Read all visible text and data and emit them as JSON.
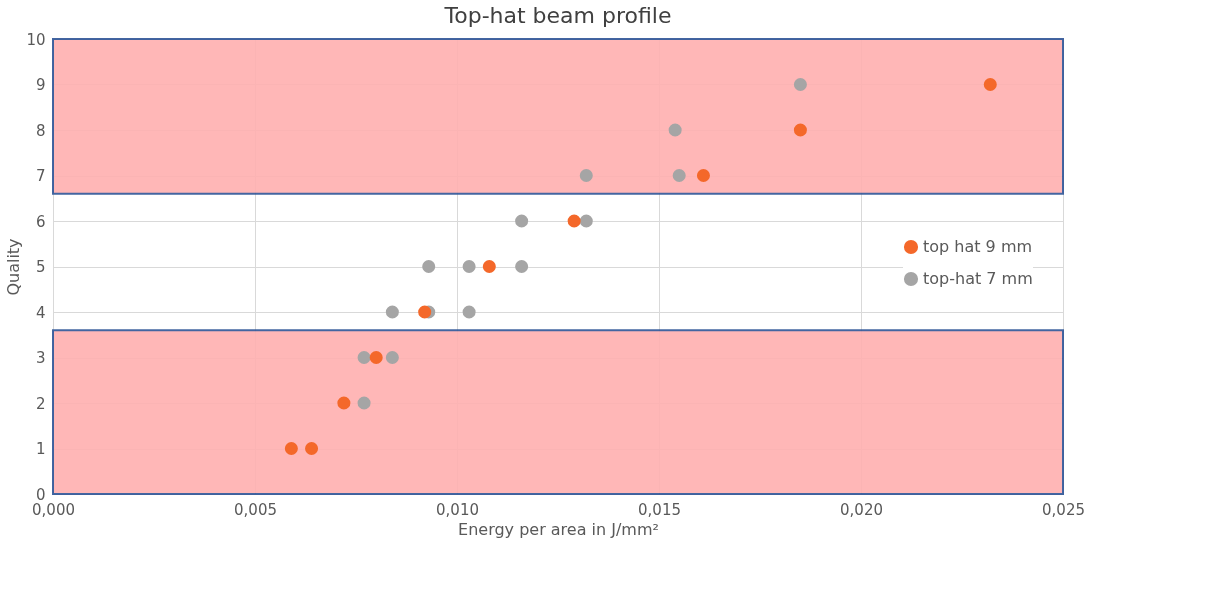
{
  "chart_data": {
    "type": "scatter",
    "title": "Top-hat beam profile",
    "xlabel": "Energy per area in J/mm²",
    "ylabel": "Quality",
    "xlim": [
      0,
      0.025
    ],
    "ylim": [
      0,
      10
    ],
    "xticks": [
      {
        "value": 0,
        "label": "0,000"
      },
      {
        "value": 0.005,
        "label": "0,005"
      },
      {
        "value": 0.01,
        "label": "0,010"
      },
      {
        "value": 0.015,
        "label": "0,015"
      },
      {
        "value": 0.02,
        "label": "0,020"
      },
      {
        "value": 0.025,
        "label": "0,025"
      }
    ],
    "yticks": [
      0,
      1,
      2,
      3,
      4,
      5,
      6,
      7,
      8,
      9,
      10
    ],
    "grid": true,
    "legend": "right",
    "marker": "circle",
    "bands": [
      {
        "axis": "y",
        "from": 6.6,
        "to": 10,
        "label": null,
        "color": "#ffb0b0"
      },
      {
        "axis": "y",
        "from": 0,
        "to": 3.6,
        "label": null,
        "color": "#ffb0b0"
      }
    ],
    "series": [
      {
        "name": "top hat 9 mm",
        "color": "#f4682a",
        "x": [
          0.0232,
          0.0185,
          0.0161,
          0.0129,
          0.0108,
          0.0092,
          0.008,
          0.0072,
          0.0059,
          0.0064
        ],
        "values": [
          9,
          8,
          7,
          6,
          5,
          4,
          3,
          2,
          1,
          1
        ]
      },
      {
        "name": "top-hat 7 mm",
        "color": "#a5a5a5",
        "x": [
          0.0185,
          0.0154,
          0.0132,
          0.0155,
          0.0116,
          0.0132,
          0.0093,
          0.0103,
          0.0116,
          0.0084,
          0.0093,
          0.0103,
          0.0077,
          0.0084,
          0.0077
        ],
        "values": [
          9,
          8,
          7,
          7,
          6,
          6,
          5,
          5,
          5,
          4,
          4,
          4,
          3,
          3,
          2
        ]
      }
    ]
  }
}
